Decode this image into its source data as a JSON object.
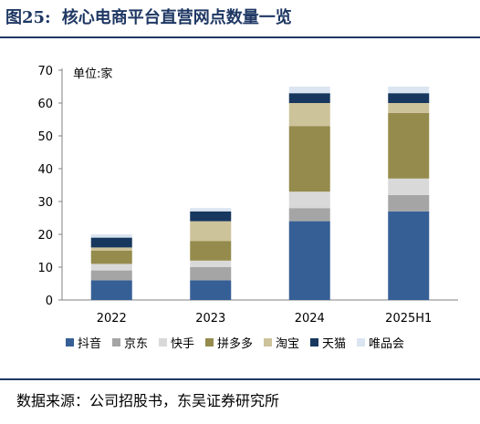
{
  "figure": {
    "number": "图25:",
    "title": "核心电商平台直营网点数量一览"
  },
  "source": "数据来源：公司招股书，东吴证券研究所",
  "chart_data": {
    "type": "bar",
    "stacked": true,
    "unit_label": "单位:家",
    "categories": [
      "2022",
      "2023",
      "2024",
      "2025H1"
    ],
    "ylim": [
      0,
      70
    ],
    "yticks": [
      0,
      10,
      20,
      30,
      40,
      50,
      60,
      70
    ],
    "grid": false,
    "legend_position": "bottom",
    "series": [
      {
        "name": "抖音",
        "color": "#365f96",
        "values": [
          6,
          6,
          24,
          27
        ]
      },
      {
        "name": "京东",
        "color": "#a5a5a5",
        "values": [
          3,
          4,
          4,
          5
        ]
      },
      {
        "name": "快手",
        "color": "#d9d9d9",
        "values": [
          2,
          2,
          5,
          5
        ]
      },
      {
        "name": "拼多多",
        "color": "#958b4c",
        "values": [
          4,
          6,
          20,
          20
        ]
      },
      {
        "name": "淘宝",
        "color": "#cdc39a",
        "values": [
          1,
          6,
          7,
          3
        ]
      },
      {
        "name": "天猫",
        "color": "#17375e",
        "values": [
          3,
          3,
          3,
          3
        ]
      },
      {
        "name": "唯品会",
        "color": "#dbe5f1",
        "values": [
          1,
          1,
          2,
          2
        ]
      }
    ]
  }
}
